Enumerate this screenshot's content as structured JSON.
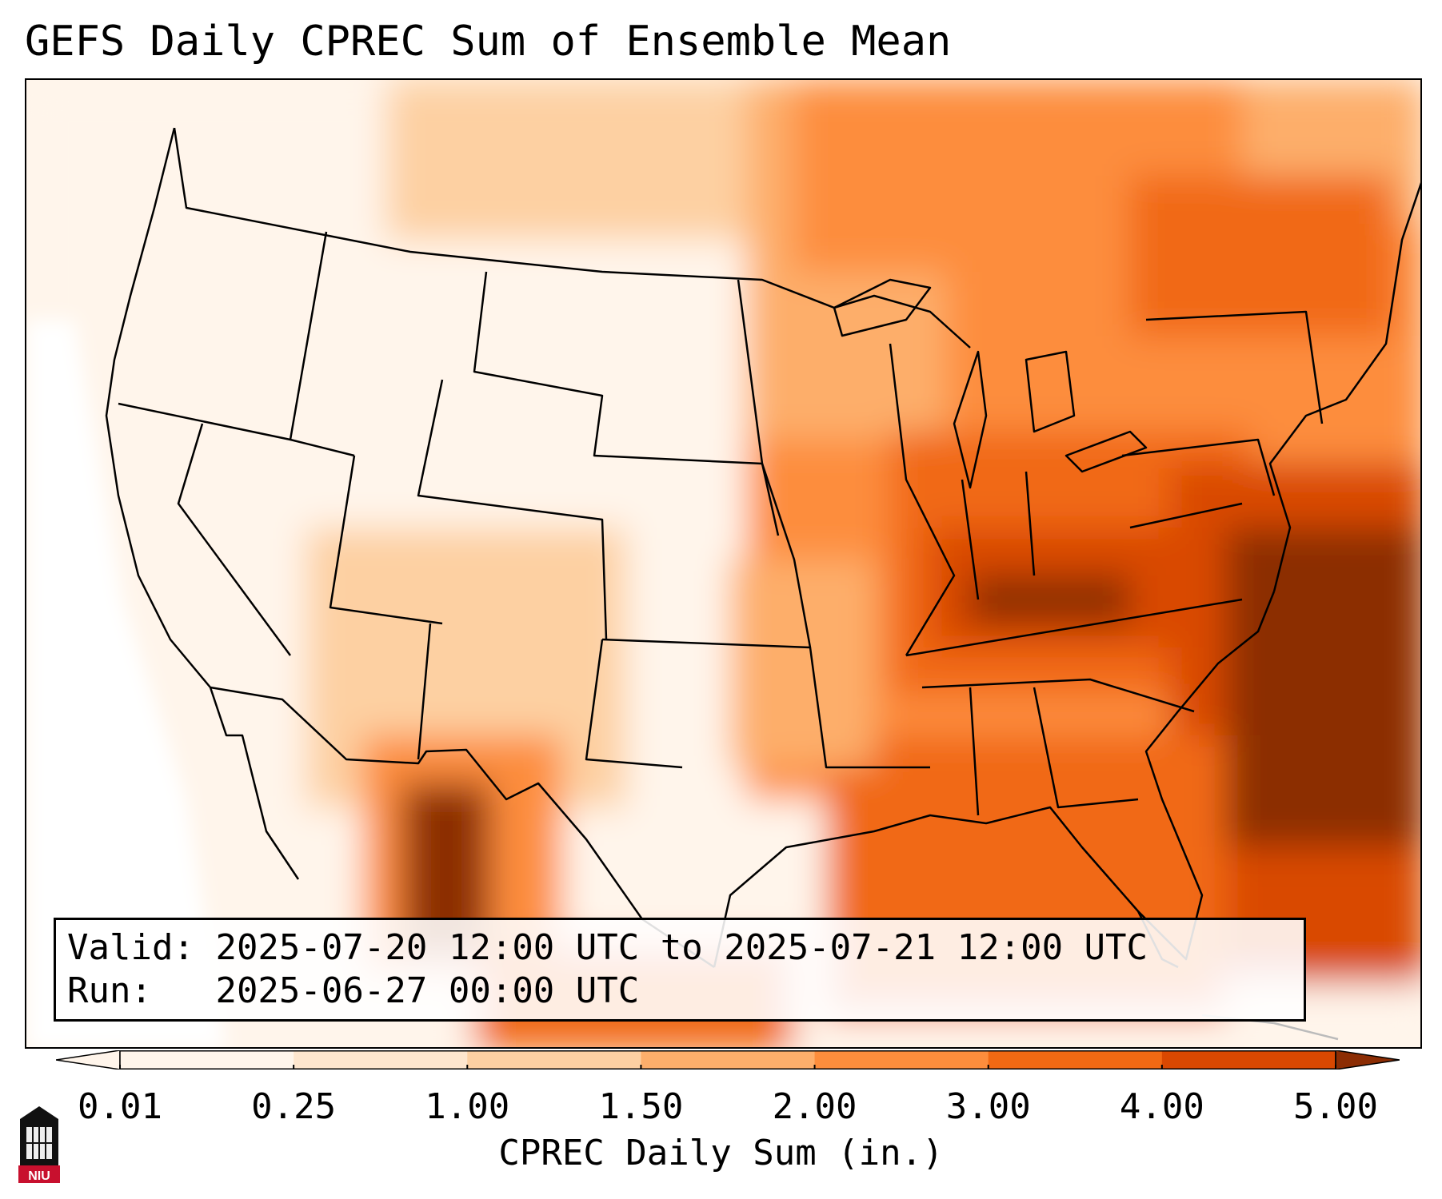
{
  "title": "GEFS Daily CPREC Sum of Ensemble Mean",
  "info": {
    "valid_label": "Valid:",
    "valid_value": "2025-07-20 12:00 UTC to 2025-07-21 12:00 UTC",
    "run_label": "Run:",
    "run_value": "2025-06-27 00:00 UTC"
  },
  "colorbar": {
    "label": "CPREC Daily Sum (in.)",
    "ticks": [
      "0.01",
      "0.25",
      "1.00",
      "1.50",
      "2.00",
      "3.00",
      "4.00",
      "5.00"
    ],
    "colors": [
      "#fff5eb",
      "#fee6ce",
      "#fdd0a2",
      "#fdae6b",
      "#fd8d3c",
      "#f16913",
      "#d94801",
      "#8c2d04"
    ],
    "extend": "both"
  },
  "logo": {
    "text": "NIU",
    "colors": {
      "dark": "#111111",
      "red": "#c8102e"
    }
  },
  "map": {
    "region": "Contiguous United States",
    "colors": {
      "ocean_fade": "#ffffff",
      "border": "#000000"
    }
  }
}
